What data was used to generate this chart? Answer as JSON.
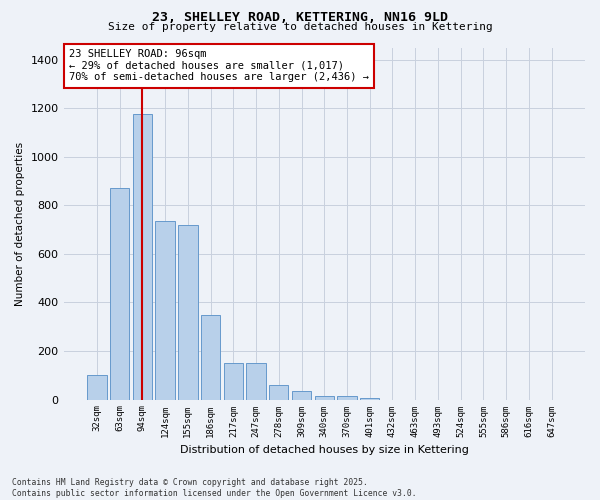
{
  "title_line1": "23, SHELLEY ROAD, KETTERING, NN16 9LD",
  "title_line2": "Size of property relative to detached houses in Kettering",
  "xlabel": "Distribution of detached houses by size in Kettering",
  "ylabel": "Number of detached properties",
  "categories": [
    "32sqm",
    "63sqm",
    "94sqm",
    "124sqm",
    "155sqm",
    "186sqm",
    "217sqm",
    "247sqm",
    "278sqm",
    "309sqm",
    "340sqm",
    "370sqm",
    "401sqm",
    "432sqm",
    "463sqm",
    "493sqm",
    "524sqm",
    "555sqm",
    "586sqm",
    "616sqm",
    "647sqm"
  ],
  "values": [
    100,
    870,
    1175,
    735,
    720,
    350,
    150,
    150,
    60,
    35,
    15,
    15,
    8,
    0,
    0,
    0,
    0,
    0,
    0,
    0,
    0
  ],
  "bar_color": "#b8d0ea",
  "bar_edge_color": "#6699cc",
  "marker_index": 2,
  "marker_color": "#cc0000",
  "annotation_text": "23 SHELLEY ROAD: 96sqm\n← 29% of detached houses are smaller (1,017)\n70% of semi-detached houses are larger (2,436) →",
  "annotation_box_color": "#ffffff",
  "annotation_box_edge": "#cc0000",
  "ylim": [
    0,
    1450
  ],
  "yticks": [
    0,
    200,
    400,
    600,
    800,
    1000,
    1200,
    1400
  ],
  "footer_line1": "Contains HM Land Registry data © Crown copyright and database right 2025.",
  "footer_line2": "Contains public sector information licensed under the Open Government Licence v3.0.",
  "bg_color": "#eef2f8",
  "plot_bg_color": "#eef2f8",
  "grid_color": "#c8d0de"
}
